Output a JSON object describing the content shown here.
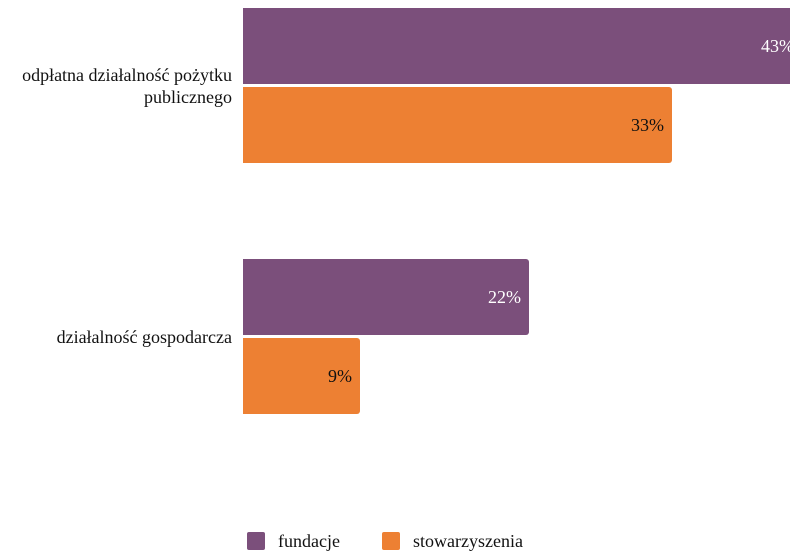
{
  "chart_data": {
    "type": "bar",
    "orientation": "horizontal",
    "categories": [
      "odpłatna działalność pożytku publicznego",
      "działalność gospodarcza"
    ],
    "series": [
      {
        "name": "fundacje",
        "color": "#7b4f7b",
        "label_color": "#ffffff",
        "values": [
          43,
          22
        ],
        "value_labels": [
          "43%",
          "22%"
        ]
      },
      {
        "name": "stowarzyszenia",
        "color": "#ed8033",
        "label_color": "#111111",
        "values": [
          33,
          9
        ],
        "value_labels": [
          "33%",
          "9%"
        ]
      }
    ],
    "legend": "bottom"
  }
}
